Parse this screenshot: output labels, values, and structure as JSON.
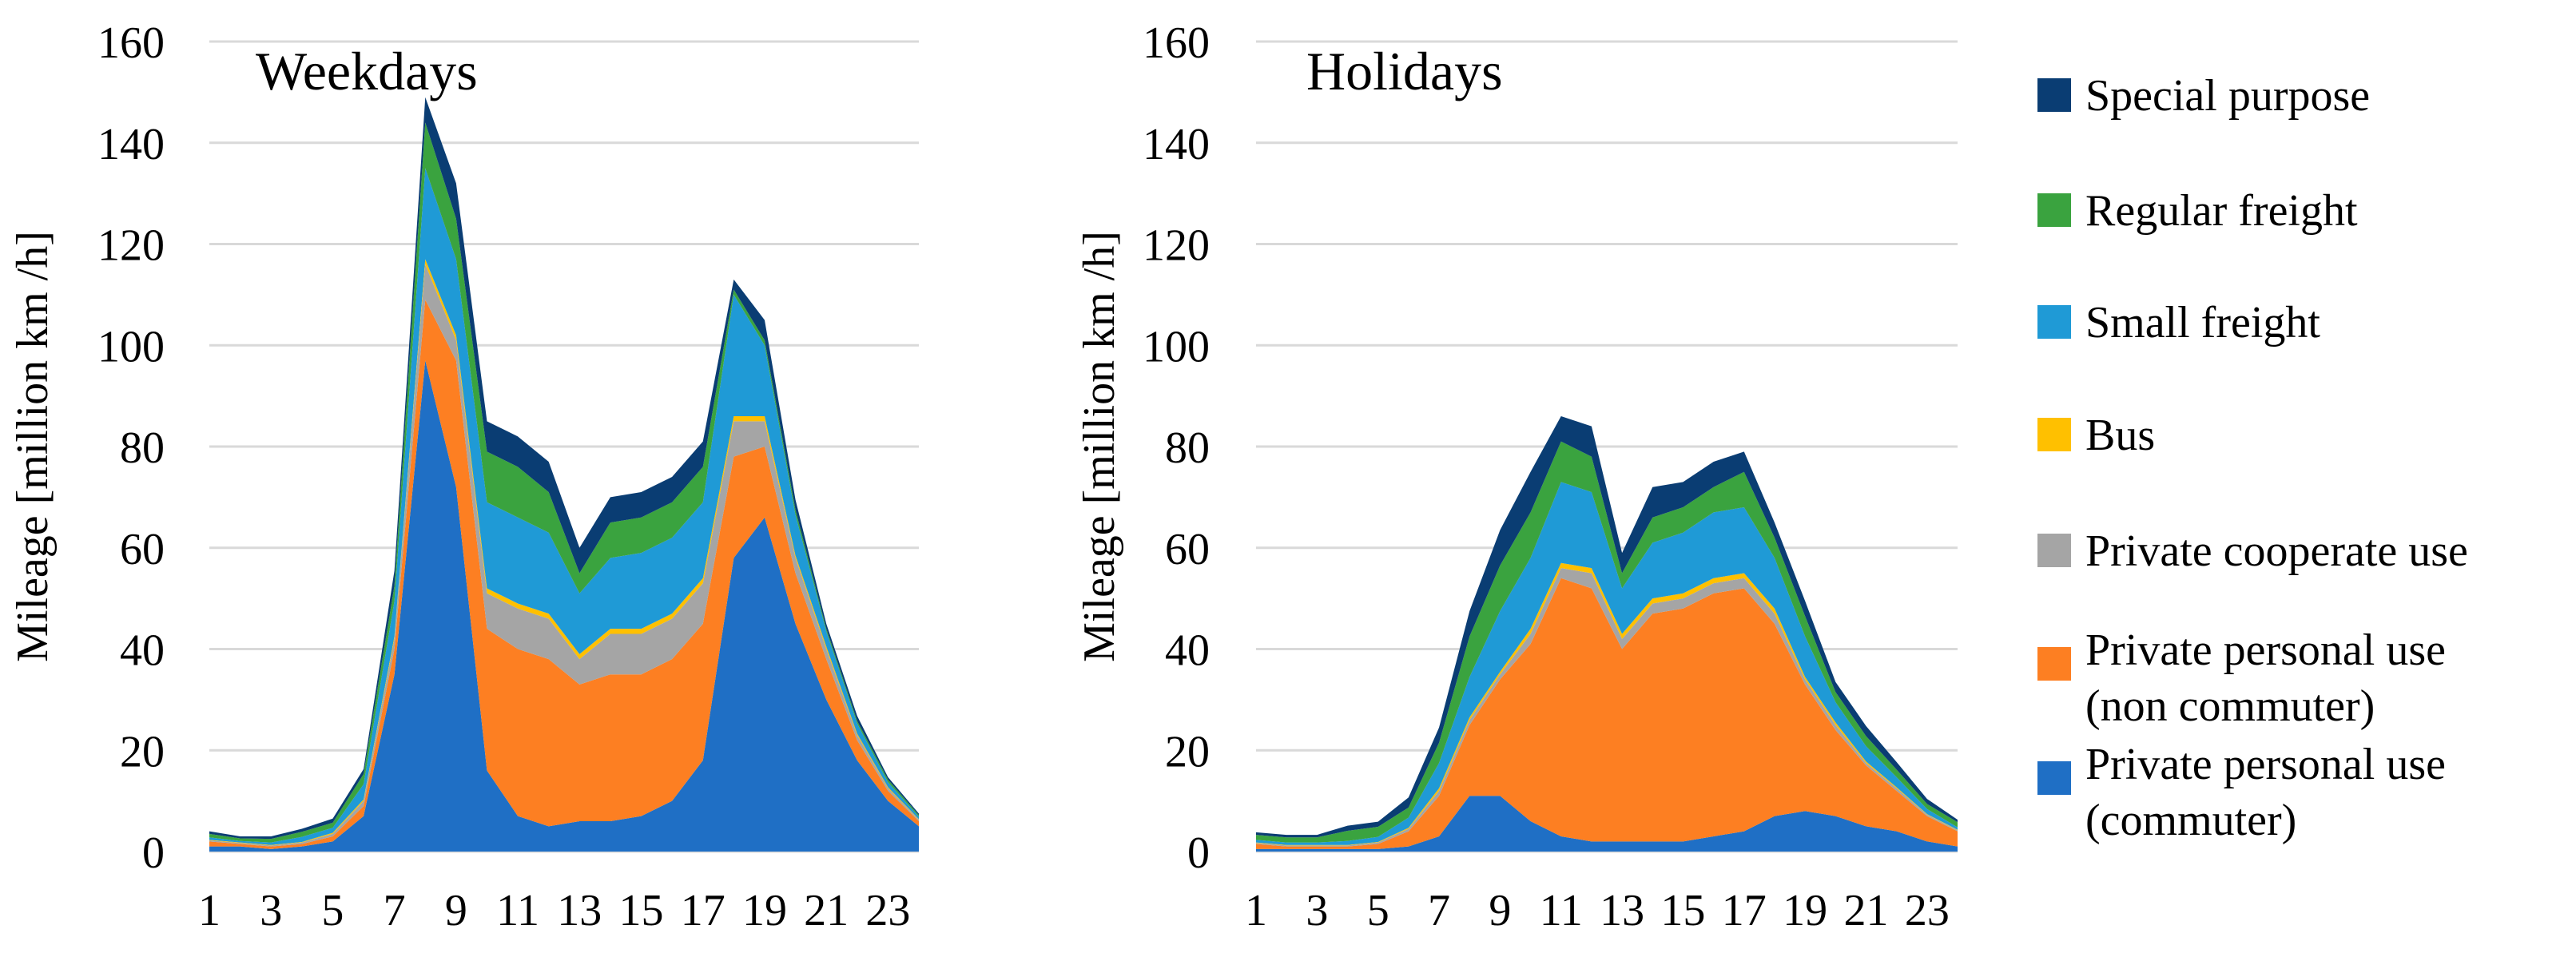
{
  "chart_data": [
    {
      "type": "area",
      "stacked": true,
      "title": "Weekdays",
      "xlabel": "",
      "ylabel": "Mileage  [million  km /h]",
      "ylim": [
        0,
        160
      ],
      "yticks": [
        0,
        20,
        40,
        60,
        80,
        100,
        120,
        140,
        160
      ],
      "x": [
        1,
        2,
        3,
        4,
        5,
        6,
        7,
        8,
        9,
        10,
        11,
        12,
        13,
        14,
        15,
        16,
        17,
        18,
        19,
        20,
        21,
        22,
        23,
        24
      ],
      "xticks": [
        "1",
        "3",
        "5",
        "7",
        "9",
        "11",
        "13",
        "15",
        "17",
        "19",
        "21",
        "23"
      ],
      "grid": true,
      "series": [
        {
          "name": "Private personal use\n(commuter)",
          "values": [
            1,
            1,
            0.5,
            1,
            2,
            7,
            35,
            97,
            72,
            16,
            7,
            5,
            6,
            6,
            7,
            10,
            18,
            58,
            66,
            45,
            30,
            18,
            10,
            5
          ]
        },
        {
          "name": "Private personal use\n(non commuter)",
          "values": [
            1,
            0.5,
            0.5,
            0.5,
            1,
            2,
            5,
            12,
            25,
            28,
            33,
            33,
            27,
            29,
            28,
            28,
            27,
            20,
            14,
            10,
            8,
            4,
            2,
            1
          ]
        },
        {
          "name": "Private cooperate use",
          "values": [
            0.2,
            0.2,
            0.2,
            0.3,
            0.5,
            1,
            2,
            7,
            4,
            7,
            8,
            8,
            5,
            8,
            8,
            8,
            8,
            7,
            5,
            3,
            2,
            1,
            0.5,
            0.3
          ]
        },
        {
          "name": "Bus",
          "values": [
            0.1,
            0.1,
            0.1,
            0.1,
            0.2,
            0.3,
            0.5,
            1,
            1,
            1,
            1,
            1,
            1,
            1,
            1,
            1,
            1,
            1,
            1,
            0.5,
            0.5,
            0.3,
            0.2,
            0.1
          ]
        },
        {
          "name": "Small freight",
          "values": [
            0.5,
            0.3,
            0.5,
            1,
            1,
            3,
            7,
            18,
            15,
            17,
            17,
            16,
            12,
            14,
            15,
            15,
            15,
            24,
            14,
            8,
            3,
            2,
            1,
            0.5
          ]
        },
        {
          "name": "Regular freight",
          "values": [
            0.7,
            0.5,
            0.7,
            1,
            1,
            2,
            3,
            9,
            8,
            10,
            10,
            8,
            4,
            7,
            7,
            7,
            7,
            1,
            1,
            1,
            0.5,
            0.5,
            0.5,
            0.3
          ]
        },
        {
          "name": "Special purpose",
          "values": [
            0.5,
            0.4,
            0.5,
            0.6,
            0.8,
            1,
            3,
            5,
            7,
            6,
            6,
            6,
            5,
            5,
            5,
            5,
            5,
            2,
            4,
            2,
            1,
            1,
            0.5,
            0.3
          ]
        }
      ]
    },
    {
      "type": "area",
      "stacked": true,
      "title": "Holidays",
      "xlabel": "",
      "ylabel": "Mileage  [million  km /h]",
      "ylim": [
        0,
        160
      ],
      "yticks": [
        0,
        20,
        40,
        60,
        80,
        100,
        120,
        140,
        160
      ],
      "x": [
        1,
        2,
        3,
        4,
        5,
        6,
        7,
        8,
        9,
        10,
        11,
        12,
        13,
        14,
        15,
        16,
        17,
        18,
        19,
        20,
        21,
        22,
        23,
        24
      ],
      "xticks": [
        "1",
        "3",
        "5",
        "7",
        "9",
        "11",
        "13",
        "15",
        "17",
        "19",
        "21",
        "23"
      ],
      "grid": true,
      "series": [
        {
          "name": "Private personal use\n(commuter)",
          "values": [
            0.5,
            0.5,
            0.5,
            0.5,
            0.5,
            1,
            3,
            11,
            11,
            6,
            3,
            2,
            2,
            2,
            2,
            3,
            4,
            7,
            8,
            7,
            5,
            4,
            2,
            1
          ]
        },
        {
          "name": "Private personal use\n(non commuter)",
          "values": [
            1,
            0.5,
            0.5,
            0.5,
            1,
            3,
            8,
            14,
            23,
            35,
            51,
            50,
            38,
            45,
            46,
            48,
            48,
            38,
            25,
            17,
            12,
            8,
            5,
            3
          ]
        },
        {
          "name": "Private cooperate use",
          "values": [
            0.2,
            0.2,
            0.2,
            0.2,
            0.3,
            0.5,
            1,
            1,
            1,
            2,
            2,
            3,
            2,
            2,
            2,
            2,
            2,
            2,
            1,
            1,
            0.5,
            0.5,
            0.3,
            0.2
          ]
        },
        {
          "name": "Bus",
          "values": [
            0.1,
            0.1,
            0.1,
            0.1,
            0.1,
            0.2,
            0.5,
            0.5,
            0.5,
            1,
            1,
            1,
            1,
            1,
            1,
            1,
            1,
            1,
            0.5,
            0.5,
            0.3,
            0.2,
            0.1,
            0.1
          ]
        },
        {
          "name": "Small freight",
          "values": [
            0.5,
            0.5,
            0.5,
            0.8,
            1,
            2,
            5,
            8,
            12,
            14,
            16,
            15,
            9,
            11,
            12,
            13,
            13,
            10,
            8,
            4,
            3,
            2,
            1,
            0.5
          ]
        },
        {
          "name": "Regular freight",
          "values": [
            1,
            1,
            1,
            2,
            2,
            2,
            4,
            8,
            9,
            9,
            8,
            7,
            3,
            5,
            5,
            5,
            7,
            4,
            4,
            2,
            2,
            1.5,
            1,
            1
          ]
        },
        {
          "name": "Special purpose",
          "values": [
            0.5,
            0.5,
            0.5,
            1,
            1,
            2,
            3,
            5,
            7,
            8,
            5,
            6,
            4,
            6,
            5,
            5,
            4,
            3,
            3,
            2,
            2,
            1.5,
            1,
            0.5
          ]
        }
      ]
    }
  ],
  "legend": [
    {
      "name": "Special purpose",
      "color": "#0a3d73"
    },
    {
      "name": "Regular freight",
      "color": "#3aa33f"
    },
    {
      "name": "Small freight",
      "color": "#1f9ad6"
    },
    {
      "name": "Bus",
      "color": "#ffc000"
    },
    {
      "name": "Private cooperate use",
      "color": "#a5a5a5"
    },
    {
      "name": "Private personal use\n(non commuter)",
      "color": "#fd7f22"
    },
    {
      "name": "Private personal use\n(commuter)",
      "color": "#1f6fc5"
    }
  ],
  "colors": [
    "#1f6fc5",
    "#fd7f22",
    "#a5a5a5",
    "#ffc000",
    "#1f9ad6",
    "#3aa33f",
    "#0a3d73"
  ]
}
